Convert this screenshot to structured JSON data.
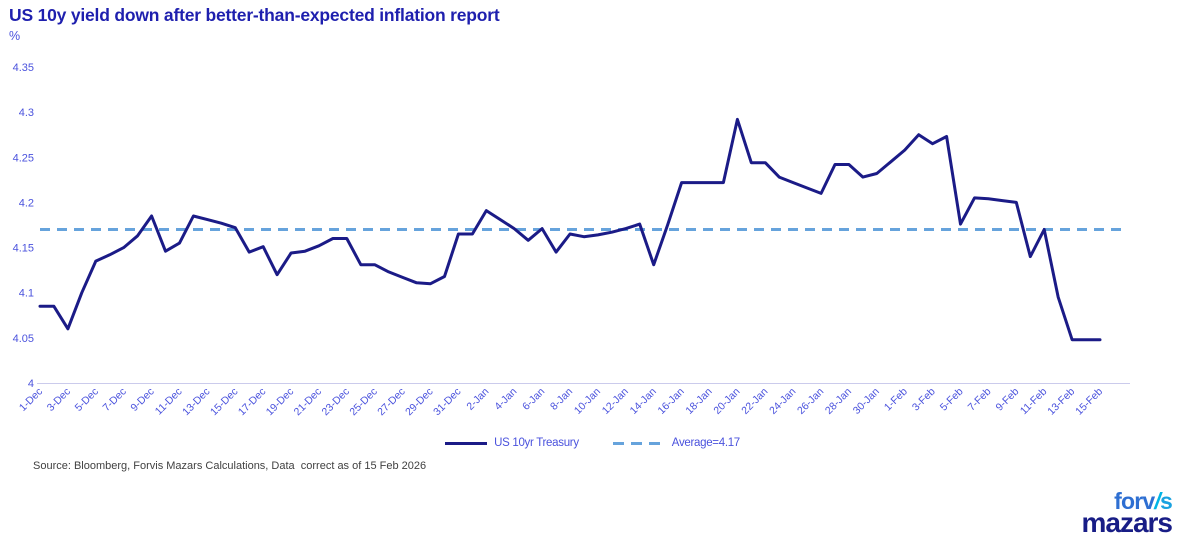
{
  "header": {
    "title": "US 10y yield down after better-than-expected inflation report",
    "unit_label": "%"
  },
  "chart_data": {
    "type": "line",
    "title": "US 10y yield down after better-than-expected inflation report",
    "xlabel": "",
    "ylabel": "%",
    "ylim": [
      4.0,
      4.35
    ],
    "ytick_step": 0.05,
    "ytick_labels": [
      "4",
      "4.05",
      "4.1",
      "4.15",
      "4.2",
      "4.25",
      "4.3",
      "4.35"
    ],
    "grid": false,
    "legend_position": "bottom",
    "x_tick_every": 2,
    "x": [
      "1-Dec",
      "2-Dec",
      "3-Dec",
      "4-Dec",
      "5-Dec",
      "6-Dec",
      "7-Dec",
      "8-Dec",
      "9-Dec",
      "10-Dec",
      "11-Dec",
      "12-Dec",
      "13-Dec",
      "14-Dec",
      "15-Dec",
      "16-Dec",
      "17-Dec",
      "18-Dec",
      "19-Dec",
      "20-Dec",
      "21-Dec",
      "22-Dec",
      "23-Dec",
      "24-Dec",
      "25-Dec",
      "26-Dec",
      "27-Dec",
      "28-Dec",
      "29-Dec",
      "30-Dec",
      "31-Dec",
      "1-Jan",
      "2-Jan",
      "3-Jan",
      "4-Jan",
      "5-Jan",
      "6-Jan",
      "7-Jan",
      "8-Jan",
      "9-Jan",
      "10-Jan",
      "11-Jan",
      "12-Jan",
      "13-Jan",
      "14-Jan",
      "15-Jan",
      "16-Jan",
      "17-Jan",
      "18-Jan",
      "19-Jan",
      "20-Jan",
      "21-Jan",
      "22-Jan",
      "23-Jan",
      "24-Jan",
      "25-Jan",
      "26-Jan",
      "27-Jan",
      "28-Jan",
      "29-Jan",
      "30-Jan",
      "31-Jan",
      "1-Feb",
      "2-Feb",
      "3-Feb",
      "4-Feb",
      "5-Feb",
      "6-Feb",
      "7-Feb",
      "8-Feb",
      "9-Feb",
      "10-Feb",
      "11-Feb",
      "12-Feb",
      "13-Feb",
      "14-Feb",
      "15-Feb"
    ],
    "series": [
      {
        "name": "US 10yr Treasury",
        "color": "#1b1b87",
        "style": "solid",
        "values": [
          4.085,
          4.085,
          4.06,
          4.1,
          4.135,
          4.142,
          4.15,
          4.163,
          4.185,
          4.146,
          4.155,
          4.185,
          4.181,
          4.177,
          4.172,
          4.145,
          4.151,
          4.12,
          4.144,
          4.146,
          4.152,
          4.16,
          4.16,
          4.131,
          4.131,
          4.123,
          4.117,
          4.111,
          4.11,
          4.118,
          4.165,
          4.165,
          4.191,
          4.181,
          4.171,
          4.158,
          4.171,
          4.145,
          4.165,
          4.162,
          4.164,
          4.167,
          4.171,
          4.176,
          4.131,
          4.175,
          4.222,
          4.222,
          4.222,
          4.222,
          4.292,
          4.244,
          4.244,
          4.228,
          4.222,
          4.216,
          4.21,
          4.242,
          4.242,
          4.228,
          4.232,
          4.245,
          4.258,
          4.275,
          4.265,
          4.273,
          4.176,
          4.205,
          4.204,
          4.202,
          4.2,
          4.14,
          4.17,
          4.095,
          4.048,
          4.048,
          4.048
        ]
      },
      {
        "name": "Average=4.17",
        "color": "#66a3dc",
        "style": "dashed",
        "value": 4.17
      }
    ]
  },
  "legend": {
    "series_label": "US 10yr Treasury",
    "average_label": "Average=4.17"
  },
  "footer": {
    "source": "Source: Bloomberg, Forvis Mazars Calculations, Data  correct as of 15 Feb 2026"
  },
  "logo": {
    "part1": "forv",
    "slash": "/",
    "part2": "s",
    "line2": "mazars"
  },
  "colors": {
    "title": "#1e1fae",
    "axis_text": "#4a52dd",
    "axis_line": "#cbcbec",
    "series_line": "#1b1b87",
    "average_line": "#66a3dc",
    "source_text": "#414141"
  }
}
